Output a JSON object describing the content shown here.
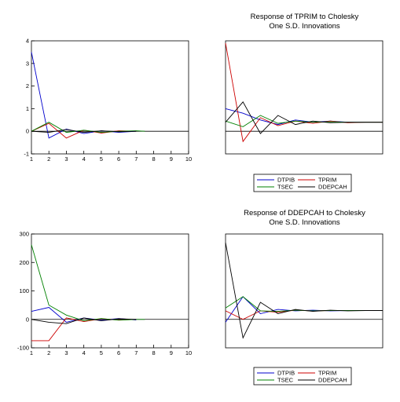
{
  "chart_data": [
    {
      "type": "line",
      "title": "",
      "xlabel": "",
      "ylabel": "",
      "x": [
        1,
        2,
        3,
        4,
        5,
        6,
        7,
        8,
        9,
        10
      ],
      "ylim": [
        -1,
        4
      ],
      "yticks": [
        -1,
        0,
        1,
        2,
        3,
        4
      ],
      "xticks": [
        1,
        2,
        3,
        4,
        5,
        6,
        7,
        8,
        9,
        10
      ],
      "series": [
        {
          "color": "#0000cc",
          "x": [
            1,
            2,
            3,
            4,
            5,
            6,
            7
          ],
          "values": [
            3.5,
            -0.3,
            0.1,
            -0.1,
            0.02,
            -0.05,
            0.0
          ]
        },
        {
          "color": "#cc0000",
          "x": [
            1,
            2,
            3,
            4,
            5,
            6,
            7
          ],
          "values": [
            0.0,
            0.35,
            -0.3,
            0.05,
            -0.08,
            0.02,
            0.0
          ]
        },
        {
          "color": "#008000",
          "x": [
            1,
            2,
            3,
            4,
            5,
            6,
            7,
            7.5
          ],
          "values": [
            0.0,
            0.4,
            -0.05,
            0.05,
            -0.05,
            0.0,
            0.02,
            0.0
          ]
        },
        {
          "color": "#000000",
          "x": [
            1,
            2,
            3,
            4,
            5,
            6,
            7
          ],
          "values": [
            0.0,
            -0.05,
            0.08,
            -0.05,
            0.02,
            -0.02,
            0.0
          ]
        }
      ]
    },
    {
      "type": "line",
      "title": "Response of TPRIM to Cholesky\nOne S.D. Innovations",
      "xlabel": "",
      "ylabel": "",
      "x": [
        1,
        2,
        3,
        4,
        5,
        6,
        7,
        8,
        9,
        10
      ],
      "ylim": [
        -1,
        4
      ],
      "series": [
        {
          "name": "DTPIB",
          "color": "#0000cc",
          "values": [
            1.0,
            0.8,
            0.5,
            0.3,
            0.5,
            0.4,
            0.45,
            0.4,
            0.4,
            0.4
          ]
        },
        {
          "name": "TPRIM",
          "color": "#cc0000",
          "values": [
            3.9,
            -0.45,
            0.6,
            0.25,
            0.45,
            0.35,
            0.45,
            0.38,
            0.4,
            0.4
          ]
        },
        {
          "name": "TSEC",
          "color": "#008000",
          "values": [
            0.45,
            0.2,
            0.7,
            0.35,
            0.45,
            0.4,
            0.42,
            0.4,
            0.4,
            0.4
          ]
        },
        {
          "name": "DDEPCAH",
          "color": "#000000",
          "values": [
            0.4,
            1.3,
            -0.1,
            0.7,
            0.3,
            0.45,
            0.38,
            0.4,
            0.4,
            0.4
          ]
        }
      ],
      "legend": {
        "placement": "bottom",
        "entries": [
          {
            "label": "DTPIB",
            "color": "#0000cc"
          },
          {
            "label": "TPRIM",
            "color": "#cc0000"
          },
          {
            "label": "TSEC",
            "color": "#008000"
          },
          {
            "label": "DDEPCAH",
            "color": "#000000"
          }
        ]
      }
    },
    {
      "type": "line",
      "title": "",
      "xlabel": "",
      "ylabel": "",
      "x": [
        1,
        2,
        3,
        4,
        5,
        6,
        7,
        8,
        9,
        10
      ],
      "ylim": [
        -100,
        300
      ],
      "yticks": [
        -100,
        0,
        100,
        200,
        300
      ],
      "xticks": [
        1,
        2,
        3,
        4,
        5,
        6,
        7,
        8,
        9,
        10
      ],
      "series": [
        {
          "color": "#0000cc",
          "x": [
            1,
            2,
            3,
            4,
            5,
            6,
            7
          ],
          "values": [
            28,
            42,
            -10,
            5,
            -3,
            3,
            -2
          ]
        },
        {
          "color": "#cc0000",
          "x": [
            1,
            2,
            3,
            4,
            5,
            6,
            7
          ],
          "values": [
            -75,
            -75,
            5,
            -8,
            2,
            -2,
            0
          ]
        },
        {
          "color": "#008000",
          "x": [
            1,
            2,
            3,
            4,
            5,
            6,
            7,
            7.5
          ],
          "values": [
            262,
            50,
            15,
            -5,
            3,
            -3,
            0,
            0
          ]
        },
        {
          "color": "#000000",
          "x": [
            1,
            2,
            3,
            4,
            5,
            6,
            7
          ],
          "values": [
            0,
            -10,
            -15,
            5,
            -5,
            2,
            0
          ]
        }
      ]
    },
    {
      "type": "line",
      "title": "Response of DDEPCAH to Cholesky\nOne S.D. Innovations",
      "xlabel": "",
      "ylabel": "",
      "x": [
        1,
        2,
        3,
        4,
        5,
        6,
        7,
        8,
        9,
        10
      ],
      "ylim": [
        -100,
        300
      ],
      "series": [
        {
          "name": "DTPIB",
          "color": "#0000cc",
          "values": [
            -10,
            80,
            20,
            35,
            30,
            32,
            30,
            31,
            31,
            31
          ]
        },
        {
          "name": "TPRIM",
          "color": "#cc0000",
          "values": [
            30,
            0,
            30,
            25,
            32,
            30,
            31,
            31,
            31,
            31
          ]
        },
        {
          "name": "TSEC",
          "color": "#008000",
          "values": [
            40,
            80,
            30,
            28,
            32,
            30,
            31,
            31,
            31,
            31
          ]
        },
        {
          "name": "DDEPCAH",
          "color": "#000000",
          "values": [
            270,
            -65,
            60,
            20,
            35,
            28,
            32,
            30,
            31,
            31
          ]
        }
      ],
      "legend": {
        "placement": "bottom",
        "entries": [
          {
            "label": "DTPIB",
            "color": "#0000cc"
          },
          {
            "label": "TPRIM",
            "color": "#cc0000"
          },
          {
            "label": "TSEC",
            "color": "#008000"
          },
          {
            "label": "DDEPCAH",
            "color": "#000000"
          }
        ]
      }
    }
  ],
  "titles": {
    "top_right_line1": "Response of TPRIM to Cholesky",
    "top_right_line2": "One S.D. Innovations",
    "bottom_right_line1": "Response of DDEPCAH to Cholesky",
    "bottom_right_line2": "One S.D. Innovations"
  }
}
